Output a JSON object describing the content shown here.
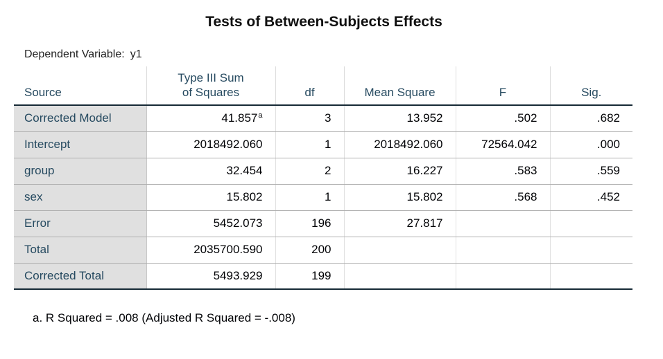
{
  "title": "Tests of Between-Subjects Effects",
  "dependent_variable": {
    "label": "Dependent Variable:",
    "value": "y1"
  },
  "columns": {
    "source": "Source",
    "ss_line1": "Type III Sum",
    "ss_line2": "of Squares",
    "df": "df",
    "ms": "Mean Square",
    "f": "F",
    "sig": "Sig."
  },
  "rows": [
    {
      "source": "Corrected Model",
      "ss": "41.857",
      "ss_note": "a",
      "df": "3",
      "ms": "13.952",
      "f": ".502",
      "sig": ".682"
    },
    {
      "source": "Intercept",
      "ss": "2018492.060",
      "ss_note": "",
      "df": "1",
      "ms": "2018492.060",
      "f": "72564.042",
      "sig": ".000"
    },
    {
      "source": "group",
      "ss": "32.454",
      "ss_note": "",
      "df": "2",
      "ms": "16.227",
      "f": ".583",
      "sig": ".559"
    },
    {
      "source": "sex",
      "ss": "15.802",
      "ss_note": "",
      "df": "1",
      "ms": "15.802",
      "f": ".568",
      "sig": ".452"
    },
    {
      "source": "Error",
      "ss": "5452.073",
      "ss_note": "",
      "df": "196",
      "ms": "27.817",
      "f": "",
      "sig": ""
    },
    {
      "source": "Total",
      "ss": "2035700.590",
      "ss_note": "",
      "df": "200",
      "ms": "",
      "f": "",
      "sig": ""
    },
    {
      "source": "Corrected Total",
      "ss": "5493.929",
      "ss_note": "",
      "df": "199",
      "ms": "",
      "f": "",
      "sig": ""
    }
  ],
  "footnote": "a. R Squared = .008 (Adjusted R Squared = -.008)"
}
